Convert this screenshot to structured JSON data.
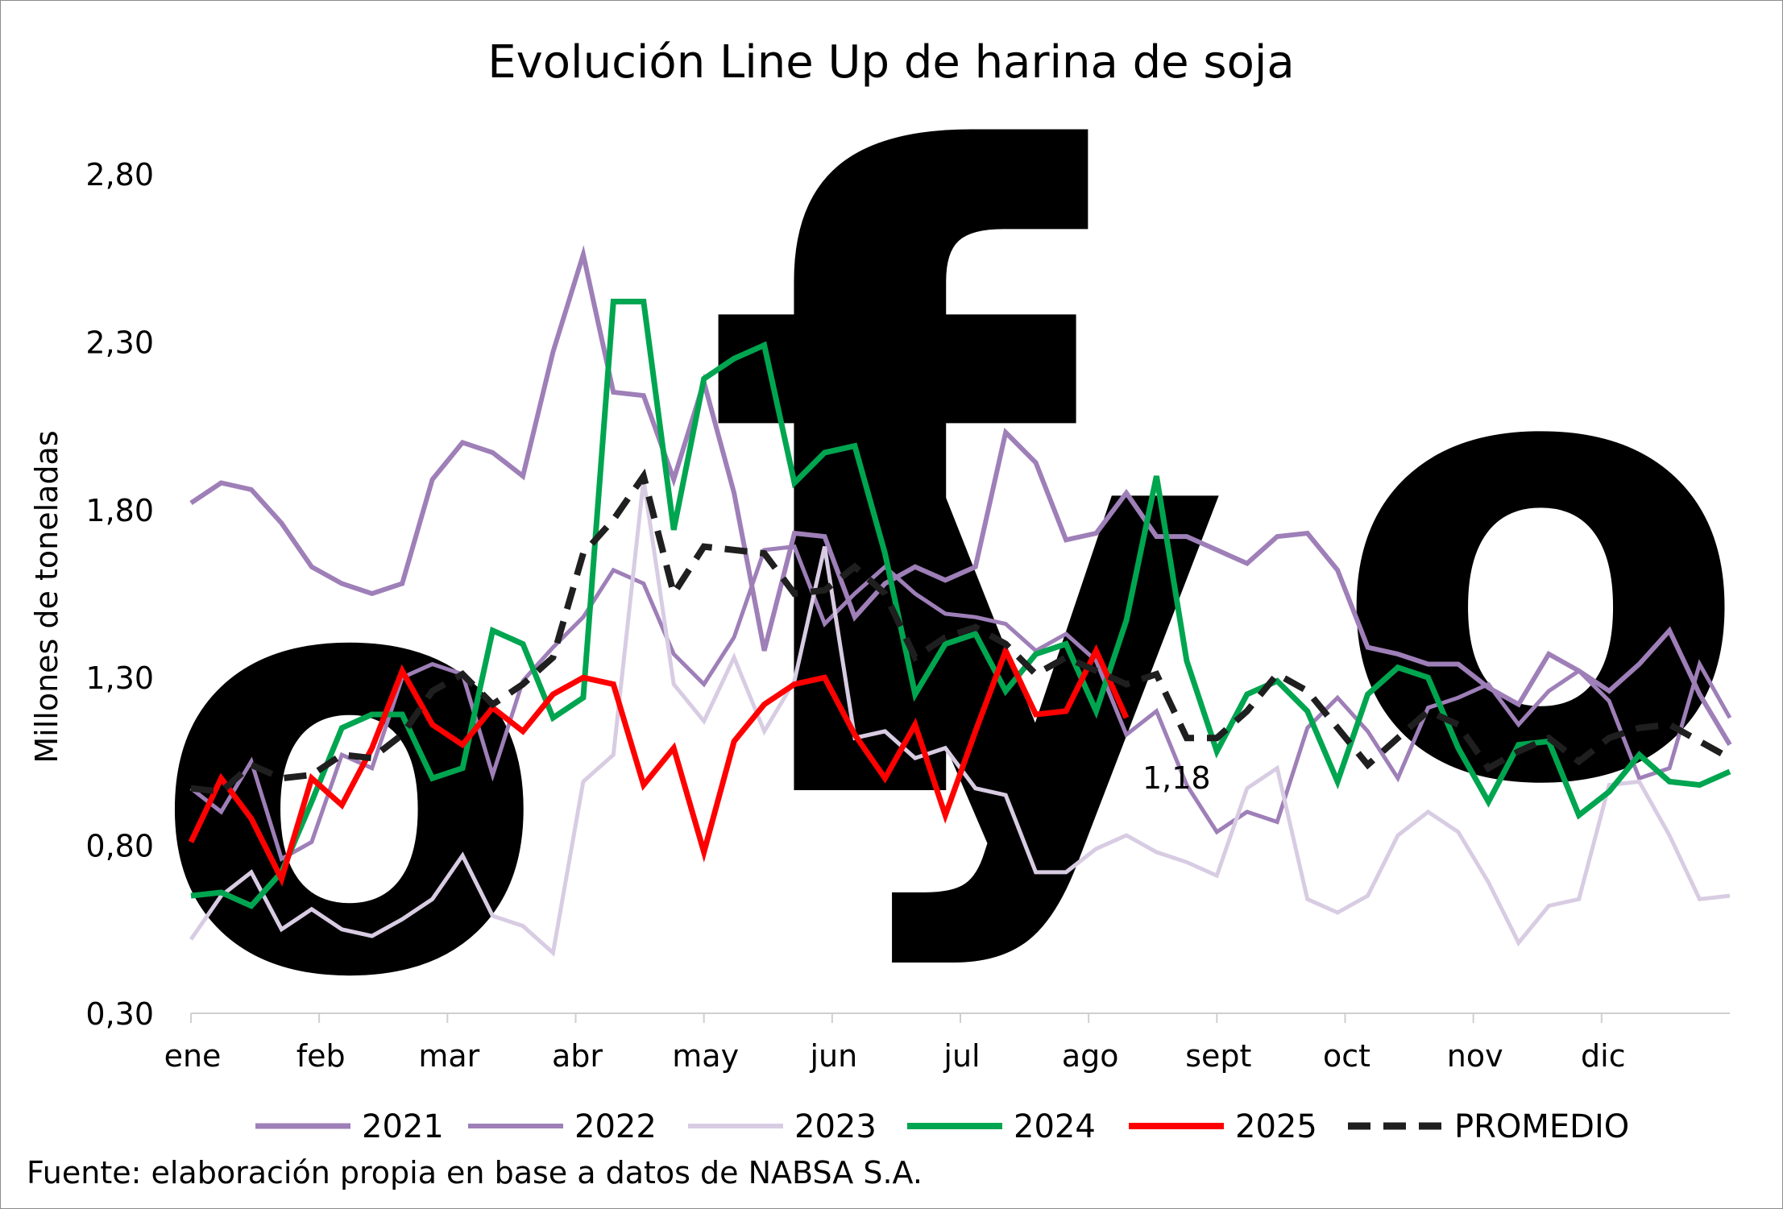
{
  "chart_data": {
    "type": "line",
    "title": "Evolución Line Up de harina de soja",
    "ylabel": "Millones de toneladas",
    "ylim": [
      0.3,
      2.8
    ],
    "yticks": [
      "2,80",
      "2,30",
      "1,80",
      "1,30",
      "0,80",
      "0,30"
    ],
    "ytick_values": [
      2.8,
      2.3,
      1.8,
      1.3,
      0.8,
      0.3
    ],
    "months": [
      "ene",
      "feb",
      "mar",
      "abr",
      "may",
      "jun",
      "jul",
      "ago",
      "sept",
      "oct",
      "nov",
      "dic"
    ],
    "weeks_per_year": 52,
    "series": [
      {
        "name": "2021",
        "color": "#9e7fb8",
        "width": 6,
        "dash": "",
        "values": [
          1.82,
          1.88,
          1.86,
          1.76,
          1.63,
          1.58,
          1.55,
          1.58,
          1.89,
          2.0,
          1.97,
          1.9,
          2.27,
          2.56,
          2.15,
          2.14,
          1.89,
          2.18,
          1.85,
          1.38,
          1.73,
          1.72,
          1.48,
          1.58,
          1.63,
          1.59,
          1.63,
          2.03,
          1.94,
          1.71,
          1.73,
          1.85,
          1.72,
          1.72,
          1.68,
          1.64,
          1.72,
          1.73,
          1.62,
          1.39,
          1.37,
          1.34,
          1.34,
          1.27,
          1.22,
          1.37,
          1.32,
          1.26,
          1.34,
          1.44,
          1.25,
          1.1
        ]
      },
      {
        "name": "2022",
        "color": "#9e7fb8",
        "width": 5,
        "dash": "",
        "values": [
          0.97,
          0.9,
          1.05,
          0.76,
          0.81,
          1.07,
          1.03,
          1.3,
          1.34,
          1.31,
          1.01,
          1.29,
          1.39,
          1.48,
          1.62,
          1.58,
          1.37,
          1.28,
          1.42,
          1.68,
          1.69,
          1.46,
          1.55,
          1.63,
          1.55,
          1.49,
          1.48,
          1.46,
          1.38,
          1.43,
          1.35,
          1.13,
          1.2,
          0.98,
          0.84,
          0.9,
          0.87,
          1.15,
          1.24,
          1.14,
          1.0,
          1.21,
          1.24,
          1.28,
          1.16,
          1.26,
          1.32,
          1.23,
          1.0,
          1.03,
          1.34,
          1.18
        ]
      },
      {
        "name": "2023",
        "color": "#d8cce3",
        "width": 5,
        "dash": "",
        "values": [
          0.52,
          0.65,
          0.72,
          0.55,
          0.61,
          0.55,
          0.53,
          0.58,
          0.64,
          0.77,
          0.59,
          0.56,
          0.48,
          0.99,
          1.07,
          1.89,
          1.28,
          1.17,
          1.36,
          1.14,
          1.29,
          1.69,
          1.12,
          1.14,
          1.06,
          1.09,
          0.97,
          0.95,
          0.72,
          0.72,
          0.79,
          0.83,
          0.78,
          0.75,
          0.71,
          0.97,
          1.03,
          0.64,
          0.6,
          0.65,
          0.83,
          0.9,
          0.84,
          0.69,
          0.51,
          0.62,
          0.64,
          0.98,
          0.99,
          0.83,
          0.64,
          0.65
        ]
      },
      {
        "name": "2024",
        "color": "#00a550",
        "width": 7,
        "dash": "",
        "values": [
          0.65,
          0.66,
          0.62,
          0.72,
          0.93,
          1.15,
          1.19,
          1.19,
          1.0,
          1.03,
          1.44,
          1.4,
          1.18,
          1.24,
          2.42,
          2.42,
          1.74,
          2.19,
          2.25,
          2.29,
          1.88,
          1.97,
          1.99,
          1.67,
          1.25,
          1.4,
          1.43,
          1.26,
          1.37,
          1.4,
          1.2,
          1.47,
          1.9,
          1.35,
          1.08,
          1.25,
          1.29,
          1.2,
          0.99,
          1.25,
          1.33,
          1.3,
          1.09,
          0.93,
          1.1,
          1.11,
          0.89,
          0.96,
          1.07,
          0.99,
          0.98,
          1.02
        ]
      },
      {
        "name": "2025",
        "color": "#ff0000",
        "width": 7,
        "dash": "",
        "values": [
          0.81,
          1.0,
          0.88,
          0.7,
          1.0,
          0.92,
          1.09,
          1.32,
          1.16,
          1.1,
          1.21,
          1.14,
          1.25,
          1.3,
          1.28,
          0.98,
          1.09,
          0.78,
          1.11,
          1.22,
          1.28,
          1.3,
          1.13,
          1.0,
          1.16,
          0.89,
          1.14,
          1.38,
          1.19,
          1.2,
          1.38,
          1.18
        ]
      },
      {
        "name": "PROMEDIO",
        "color": "#1f1f1f",
        "width": 8,
        "dash": "28 16",
        "values": [
          0.97,
          0.96,
          1.04,
          1.0,
          1.01,
          1.07,
          1.06,
          1.13,
          1.26,
          1.31,
          1.22,
          1.28,
          1.36,
          1.67,
          1.77,
          1.9,
          1.55,
          1.69,
          1.68,
          1.67,
          1.55,
          1.56,
          1.63,
          1.55,
          1.36,
          1.42,
          1.45,
          1.4,
          1.31,
          1.36,
          1.32,
          1.28,
          1.31,
          1.12,
          1.12,
          1.2,
          1.31,
          1.26,
          1.15,
          1.04,
          1.12,
          1.2,
          1.16,
          1.03,
          1.08,
          1.12,
          1.05,
          1.12,
          1.15,
          1.16,
          1.11,
          1.06
        ]
      }
    ],
    "annotation": {
      "label": "1,18",
      "series": "2025",
      "week": 32
    },
    "grid": false,
    "legend_position": "bottom"
  },
  "source": "Fuente: elaboración propia en base a datos de NABSA S.A.",
  "watermark": {
    "text": "ofyo",
    "color": "#e4f1f5"
  }
}
